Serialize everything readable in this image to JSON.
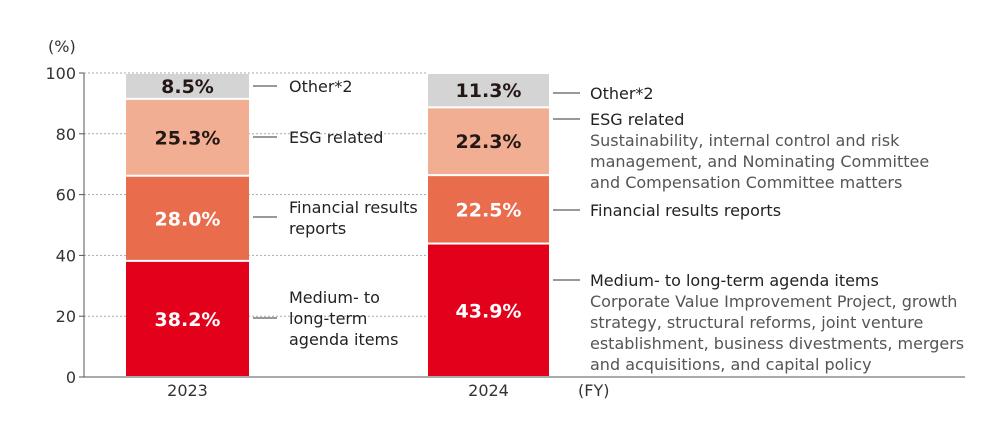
{
  "chart_data": {
    "type": "bar",
    "stacked": true,
    "ylabel": "(%)",
    "xlabel": "(FY)",
    "ylim": [
      0,
      100
    ],
    "yticks": [
      0,
      20,
      40,
      60,
      80,
      100
    ],
    "grid": "dotted horizontal",
    "categories": [
      "2023",
      "2024"
    ],
    "series": [
      {
        "name": "Medium- to long-term agenda items",
        "color": "#e3001b",
        "text_color": "#ffffff",
        "values": [
          38.2,
          43.9
        ],
        "labels": [
          "38.2%",
          "43.9%"
        ]
      },
      {
        "name": "Financial results reports",
        "color": "#e96c4d",
        "text_color": "#ffffff",
        "values": [
          28.0,
          22.5
        ],
        "labels": [
          "28.0%",
          "22.5%"
        ]
      },
      {
        "name": "ESG related",
        "color": "#f2ae92",
        "text_color": "#231815",
        "values": [
          25.3,
          22.3
        ],
        "labels": [
          "25.3%",
          "22.3%"
        ]
      },
      {
        "name": "Other*2",
        "color": "#d4d4d4",
        "text_color": "#231815",
        "values": [
          8.5,
          11.3
        ],
        "labels": [
          "8.5%",
          "11.3%"
        ]
      }
    ],
    "annotations_2023": [
      [
        "Medium- to",
        "long-term",
        "agenda items"
      ],
      [
        "Financial results",
        "reports"
      ],
      [
        "ESG related"
      ],
      [
        "Other*2"
      ]
    ],
    "annotations_2024": [
      {
        "title": "Medium- to long-term agenda items",
        "desc": [
          "Corporate Value Improvement Project, growth",
          "strategy, structural reforms, joint venture",
          "establishment, business divestments, mergers",
          "and acquisitions, and capital policy"
        ]
      },
      {
        "title": "Financial results reports",
        "desc": []
      },
      {
        "title": "ESG related",
        "desc": [
          "Sustainability, internal control and risk",
          "management, and Nominating Committee",
          "and Compensation Committee matters"
        ]
      },
      {
        "title": "Other*2",
        "desc": []
      }
    ]
  }
}
